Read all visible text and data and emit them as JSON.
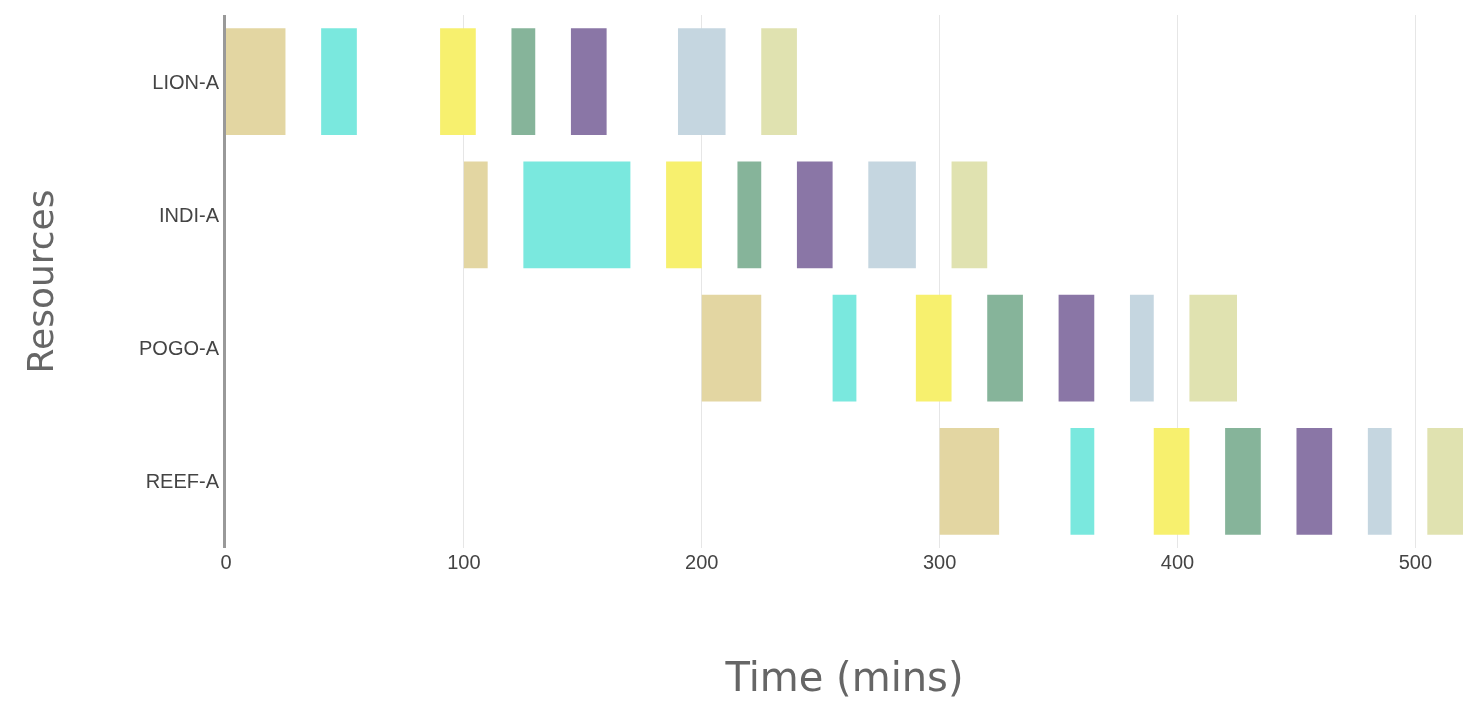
{
  "chart_data": {
    "type": "bar",
    "orientation": "horizontal",
    "xlabel": "Time (mins)",
    "ylabel": "Resources",
    "categories": [
      "LION-A",
      "INDI-A",
      "POGO-A",
      "REEF-A"
    ],
    "series": [
      {
        "color": "#e3d6a2",
        "base": [
          0,
          100,
          200,
          300
        ],
        "values": [
          25,
          10,
          25,
          25
        ]
      },
      {
        "color": "#7ae8de",
        "base": [
          40,
          125,
          255,
          355
        ],
        "values": [
          15,
          45,
          10,
          10
        ]
      },
      {
        "color": "#f7f06e",
        "base": [
          90,
          185,
          290,
          390
        ],
        "values": [
          15,
          15,
          15,
          15
        ]
      },
      {
        "color": "#86b49a",
        "base": [
          120,
          215,
          320,
          420
        ],
        "values": [
          10,
          10,
          15,
          15
        ]
      },
      {
        "color": "#8a76a6",
        "base": [
          145,
          240,
          350,
          450
        ],
        "values": [
          15,
          15,
          15,
          15
        ]
      },
      {
        "color": "#c5d6e0",
        "base": [
          190,
          270,
          380,
          480
        ],
        "values": [
          20,
          20,
          10,
          10
        ]
      },
      {
        "color": "#e0e2b0",
        "base": [
          225,
          305,
          405,
          505
        ],
        "values": [
          15,
          15,
          20,
          15
        ]
      }
    ],
    "xlim": [
      0,
      520
    ],
    "xticks": [
      0,
      100,
      200,
      300,
      400,
      500
    ],
    "grid": "x"
  }
}
